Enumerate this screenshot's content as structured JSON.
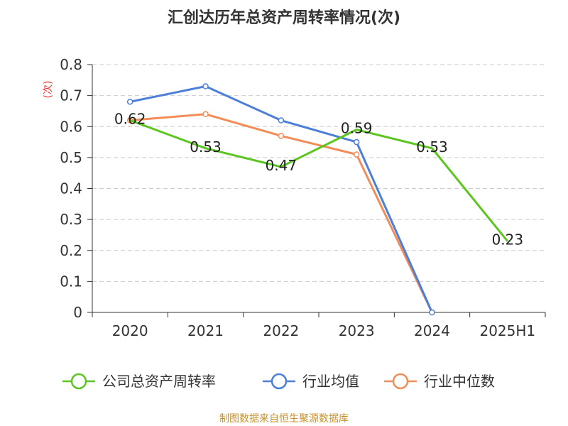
{
  "chart_data": {
    "type": "line",
    "title": "汇创达历年总资产周转率情况(次)",
    "ylabel": "(次)",
    "xlabel": "",
    "categories": [
      "2020",
      "2021",
      "2022",
      "2023",
      "2024",
      "2025H1"
    ],
    "ylim": [
      0,
      0.8
    ],
    "yticks": [
      "0",
      "0.1",
      "0.2",
      "0.3",
      "0.4",
      "0.5",
      "0.6",
      "0.7",
      "0.8"
    ],
    "grid": true,
    "legend_position": "bottom",
    "series": [
      {
        "name": "公司总资产周转率",
        "color": "#5cc520",
        "values": [
          0.62,
          0.53,
          0.47,
          0.59,
          0.53,
          0.23
        ],
        "labels": [
          "0.62",
          "0.53",
          "0.47",
          "0.59",
          "0.53",
          "0.23"
        ]
      },
      {
        "name": "行业均值",
        "color": "#4d7fd9",
        "values": [
          0.68,
          0.73,
          0.62,
          0.55,
          0,
          null
        ]
      },
      {
        "name": "行业中位数",
        "color": "#f28d59",
        "values": [
          0.62,
          0.64,
          0.57,
          0.51,
          0,
          null
        ]
      }
    ]
  },
  "source": "制图数据来自恒生聚源数据库"
}
